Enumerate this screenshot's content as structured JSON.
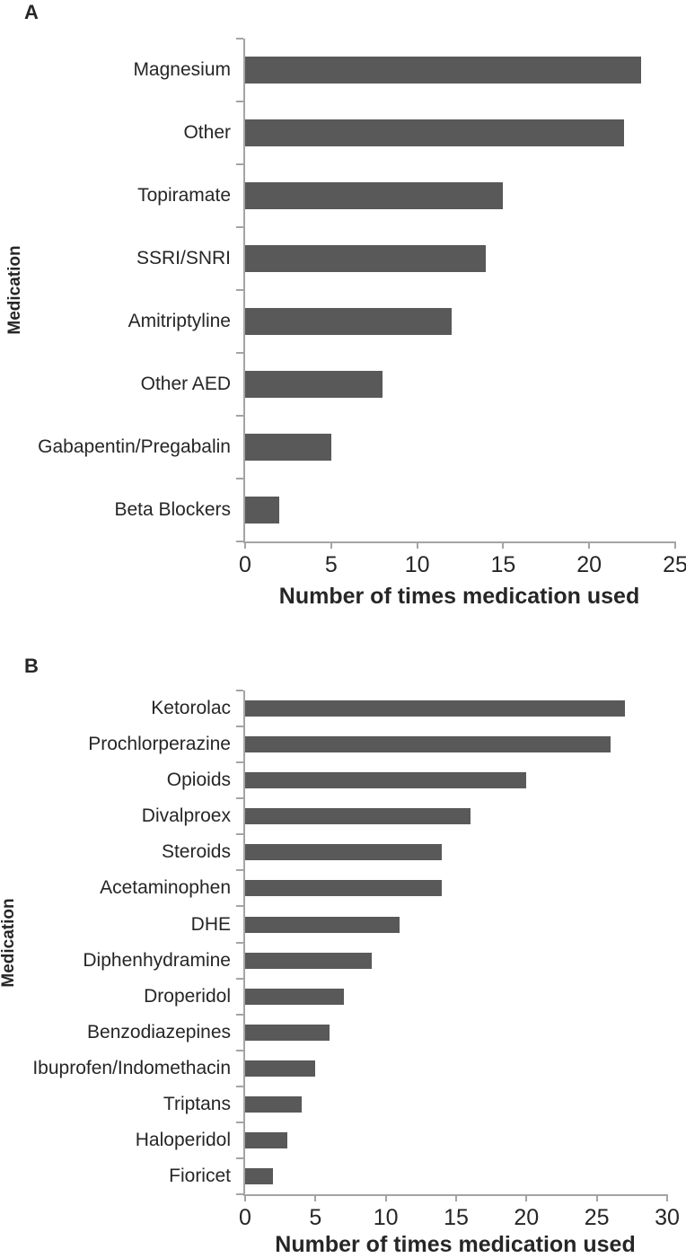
{
  "panel_labels": [
    "A",
    "B"
  ],
  "chart_data": [
    {
      "type": "bar",
      "orientation": "horizontal",
      "categories": [
        "Magnesium",
        "Other",
        "Topiramate",
        "SSRI/SNRI",
        "Amitriptyline",
        "Other AED",
        "Gabapentin/Pregabalin",
        "Beta Blockers"
      ],
      "values": [
        23,
        22,
        15,
        14,
        12,
        8,
        5,
        2
      ],
      "xlabel": "Number of times medication used",
      "ylabel": "Medication",
      "xlim": [
        0,
        25
      ],
      "xticks": [
        0,
        5,
        10,
        15,
        20,
        25
      ],
      "grid": false,
      "bar_color": "#595959",
      "axis_color": "#a4a4a4",
      "text_color": "#262626"
    },
    {
      "type": "bar",
      "orientation": "horizontal",
      "categories": [
        "Ketorolac",
        "Prochlorperazine",
        "Opioids",
        "Divalproex",
        "Steroids",
        "Acetaminophen",
        "DHE",
        "Diphenhydramine",
        "Droperidol",
        "Benzodiazepines",
        "Ibuprofen/Indomethacin",
        "Triptans",
        "Haloperidol",
        "Fioricet"
      ],
      "values": [
        27,
        26,
        20,
        16,
        14,
        14,
        11,
        9,
        7,
        6,
        5,
        4,
        3,
        2
      ],
      "xlabel": "Number of times medication used",
      "ylabel": "Medication",
      "xlim": [
        0,
        30
      ],
      "xticks": [
        0,
        5,
        10,
        15,
        20,
        25,
        30
      ],
      "grid": false,
      "bar_color": "#595959",
      "axis_color": "#a4a4a4",
      "text_color": "#262626"
    }
  ]
}
